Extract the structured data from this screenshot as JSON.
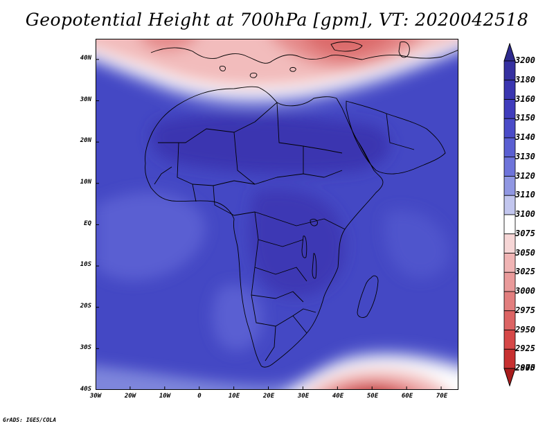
{
  "title": "Geopotential Height at 700hPa [gpm], VT: 2020042518",
  "footer": "GrADS: IGES/COLA",
  "map": {
    "region": "Africa",
    "lon_range": [
      -30,
      75
    ],
    "lat_range": [
      -40,
      45
    ],
    "lat_ticks": [
      {
        "value": 40,
        "label": "40N"
      },
      {
        "value": 30,
        "label": "30N"
      },
      {
        "value": 20,
        "label": "20N"
      },
      {
        "value": 10,
        "label": "10N"
      },
      {
        "value": 0,
        "label": "EQ"
      },
      {
        "value": -10,
        "label": "10S"
      },
      {
        "value": -20,
        "label": "20S"
      },
      {
        "value": -30,
        "label": "30S"
      },
      {
        "value": -40,
        "label": "40S"
      }
    ],
    "lon_ticks": [
      {
        "value": -30,
        "label": "30W"
      },
      {
        "value": -20,
        "label": "20W"
      },
      {
        "value": -10,
        "label": "10W"
      },
      {
        "value": 0,
        "label": "0"
      },
      {
        "value": 10,
        "label": "10E"
      },
      {
        "value": 20,
        "label": "20E"
      },
      {
        "value": 30,
        "label": "30E"
      },
      {
        "value": 40,
        "label": "40E"
      },
      {
        "value": 50,
        "label": "50E"
      },
      {
        "value": 60,
        "label": "60E"
      },
      {
        "value": 70,
        "label": "70E"
      }
    ]
  },
  "colorbar": {
    "levels": [
      {
        "label": "3200",
        "color": "#2e2a8e"
      },
      {
        "label": "3180",
        "color": "#3530a0"
      },
      {
        "label": "3160",
        "color": "#3a36b0"
      },
      {
        "label": "3150",
        "color": "#3f3cbc"
      },
      {
        "label": "3140",
        "color": "#4a4bc8"
      },
      {
        "label": "3130",
        "color": "#5a5fd2"
      },
      {
        "label": "3120",
        "color": "#6e74da"
      },
      {
        "label": "3110",
        "color": "#9097e2"
      },
      {
        "label": "3100",
        "color": "#c2c6ee"
      },
      {
        "label": "3075",
        "color": "#ffffff"
      },
      {
        "label": "3050",
        "color": "#f6d6d6"
      },
      {
        "label": "3025",
        "color": "#f0b4b4"
      },
      {
        "label": "3000",
        "color": "#e99a9a"
      },
      {
        "label": "2975",
        "color": "#e27e7e"
      },
      {
        "label": "2950",
        "color": "#dc6464"
      },
      {
        "label": "2925",
        "color": "#d64848"
      },
      {
        "label": "2900",
        "color": "#c73030"
      },
      {
        "label": "2875",
        "color": "#a81c1c"
      }
    ]
  }
}
